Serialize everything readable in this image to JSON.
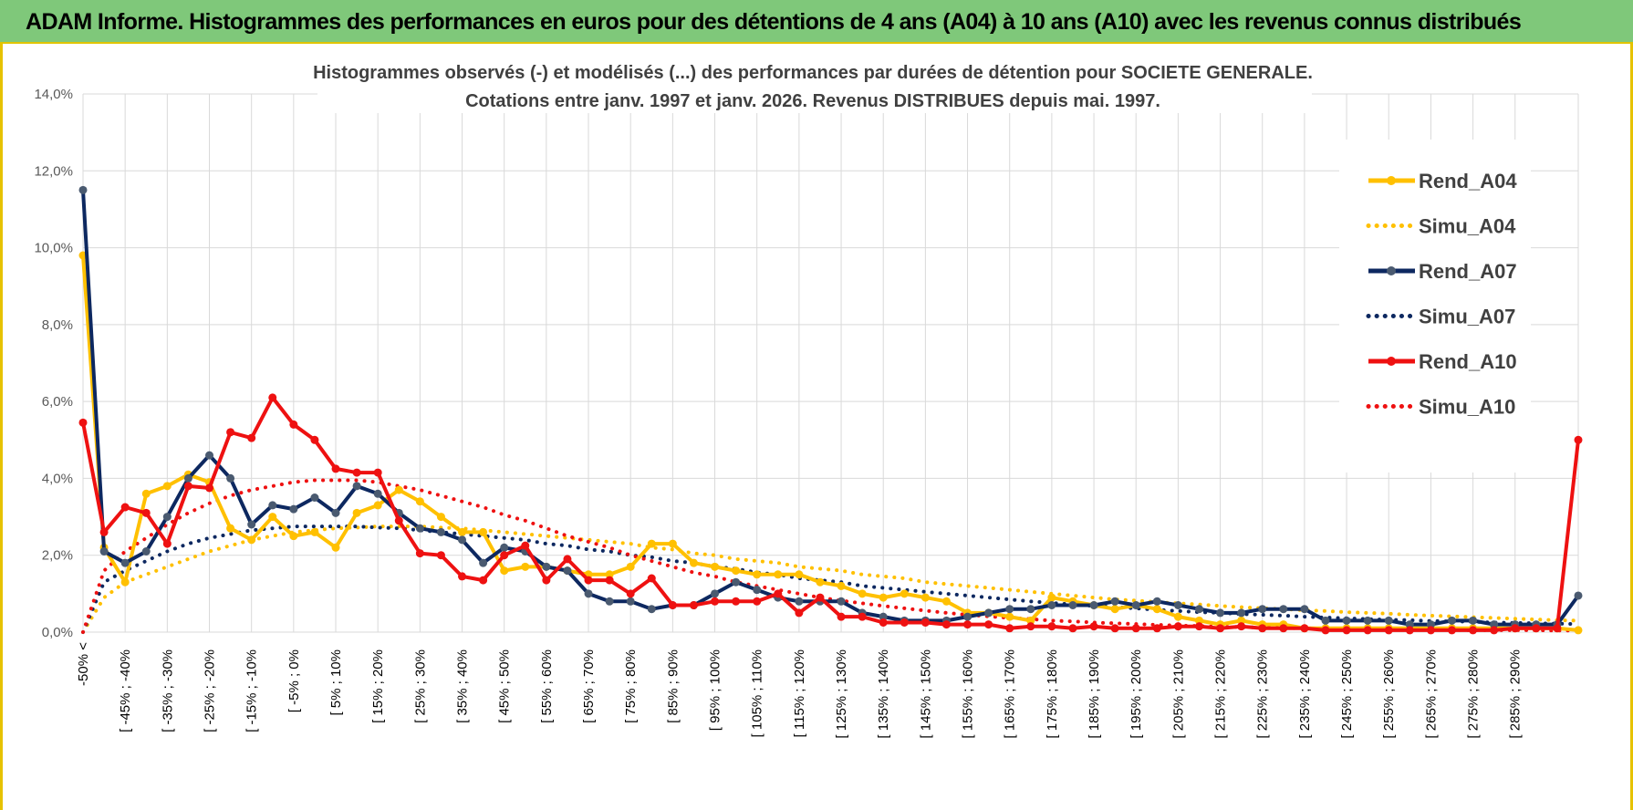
{
  "banner": {
    "title": "ADAM Informe. Histogrammes des performances en euros pour des détentions de 4 ans (A04) à 10 ans (A10) avec les revenus connus distribués"
  },
  "chart_data": {
    "type": "line",
    "title_line1": "Histogrammes observés (-) et modélisés (...) des performances par durées de détention pour SOCIETE GENERALE.",
    "title_line2": "Cotations entre janv. 1997 et janv. 2026. Revenus DISTRIBUES depuis mai. 1997.",
    "ylim": [
      0,
      14
    ],
    "yticks": [
      "0,0%",
      "2,0%",
      "4,0%",
      "6,0%",
      "8,0%",
      "10,0%",
      "12,0%",
      "14,0%"
    ],
    "x_labels": [
      "-50% <",
      "[ -45% ; -40%",
      "[ -35% ; -30%",
      "[ -25% ; -20%",
      "[ -15% ; -10%",
      "[ -5% ; 0%",
      "[ 5% ; 10%",
      "[ 15% ; 20%",
      "[ 25% ; 30%",
      "[ 35% ; 40%",
      "[ 45% ; 50%",
      "[ 55% ; 60%",
      "[ 65% ; 70%",
      "[ 75% ; 80%",
      "[ 85% ; 90%",
      "[ 95% ; 100%",
      "[ 105% ; 110%",
      "[ 115% ; 120%",
      "[ 125% ; 130%",
      "[ 135% ; 140%",
      "[ 145% ; 150%",
      "[ 155% ; 160%",
      "[ 165% ; 170%",
      "[ 175% ; 180%",
      "[ 185% ; 190%",
      "[ 195% ; 200%",
      "[ 205% ; 210%",
      "[ 215% ; 220%",
      "[ 225% ; 230%",
      "[ 235% ; 240%",
      "[ 245% ; 250%",
      "[ 255% ; 260%",
      "[ 265% ; 270%",
      "[ 275% ; 280%",
      "[ 285% ; 290%"
    ],
    "legend_position": "right",
    "grid": true,
    "series": [
      {
        "name": "Rend_A04",
        "style": "solid",
        "color": "#ffc000",
        "values": [
          9.8,
          2.2,
          1.3,
          3.6,
          3.8,
          4.1,
          3.9,
          2.7,
          2.4,
          3.0,
          2.5,
          2.6,
          2.2,
          3.1,
          3.3,
          3.7,
          3.4,
          3.0,
          2.6,
          2.6,
          1.6,
          1.7,
          1.7,
          1.6,
          1.5,
          1.5,
          1.7,
          2.3,
          2.3,
          1.8,
          1.7,
          1.6,
          1.5,
          1.5,
          1.5,
          1.3,
          1.2,
          1.0,
          0.9,
          1.0,
          0.9,
          0.8,
          0.5,
          0.5,
          0.4,
          0.3,
          0.9,
          0.8,
          0.7,
          0.6,
          0.7,
          0.6,
          0.4,
          0.3,
          0.2,
          0.3,
          0.2,
          0.2,
          0.1,
          0.1,
          0.1,
          0.1,
          0.1,
          0.1,
          0.1,
          0.1,
          0.1,
          0.1,
          0.1,
          0.1,
          0.1,
          0.05
        ]
      },
      {
        "name": "Simu_A04",
        "style": "dotted",
        "color": "#ffc000",
        "values": [
          0.0,
          0.9,
          1.3,
          1.5,
          1.7,
          1.9,
          2.1,
          2.25,
          2.4,
          2.5,
          2.6,
          2.65,
          2.7,
          2.72,
          2.75,
          2.75,
          2.75,
          2.72,
          2.7,
          2.65,
          2.6,
          2.55,
          2.5,
          2.45,
          2.4,
          2.35,
          2.3,
          2.2,
          2.15,
          2.05,
          2.0,
          1.9,
          1.85,
          1.8,
          1.7,
          1.65,
          1.6,
          1.5,
          1.45,
          1.4,
          1.3,
          1.25,
          1.2,
          1.15,
          1.1,
          1.05,
          1.0,
          0.95,
          0.9,
          0.85,
          0.82,
          0.78,
          0.75,
          0.72,
          0.68,
          0.65,
          0.62,
          0.6,
          0.57,
          0.55,
          0.52,
          0.5,
          0.48,
          0.45,
          0.43,
          0.41,
          0.39,
          0.37,
          0.35,
          0.33,
          0.31,
          0.3
        ]
      },
      {
        "name": "Rend_A07",
        "style": "solid",
        "color": "#0d2860",
        "values": [
          11.5,
          2.1,
          1.8,
          2.1,
          3.0,
          4.0,
          4.6,
          4.0,
          2.8,
          3.3,
          3.2,
          3.5,
          3.1,
          3.8,
          3.6,
          3.1,
          2.7,
          2.6,
          2.4,
          1.8,
          2.2,
          2.1,
          1.7,
          1.6,
          1.0,
          0.8,
          0.8,
          0.6,
          0.7,
          0.7,
          1.0,
          1.3,
          1.1,
          0.9,
          0.8,
          0.8,
          0.8,
          0.5,
          0.4,
          0.3,
          0.3,
          0.3,
          0.4,
          0.5,
          0.6,
          0.6,
          0.7,
          0.7,
          0.7,
          0.8,
          0.7,
          0.8,
          0.7,
          0.6,
          0.5,
          0.5,
          0.6,
          0.6,
          0.6,
          0.3,
          0.3,
          0.3,
          0.3,
          0.2,
          0.2,
          0.3,
          0.3,
          0.2,
          0.2,
          0.2,
          0.2,
          0.95
        ]
      },
      {
        "name": "Simu_A07",
        "style": "dotted",
        "color": "#0d2860",
        "values": [
          0.0,
          1.3,
          1.6,
          1.85,
          2.1,
          2.3,
          2.45,
          2.55,
          2.65,
          2.7,
          2.75,
          2.75,
          2.75,
          2.75,
          2.72,
          2.7,
          2.65,
          2.6,
          2.55,
          2.5,
          2.45,
          2.4,
          2.3,
          2.25,
          2.15,
          2.1,
          2.0,
          1.95,
          1.85,
          1.8,
          1.7,
          1.65,
          1.55,
          1.5,
          1.4,
          1.35,
          1.3,
          1.2,
          1.15,
          1.1,
          1.05,
          1.0,
          0.95,
          0.9,
          0.85,
          0.8,
          0.76,
          0.72,
          0.68,
          0.65,
          0.62,
          0.58,
          0.55,
          0.52,
          0.5,
          0.47,
          0.45,
          0.43,
          0.4,
          0.38,
          0.36,
          0.34,
          0.32,
          0.31,
          0.29,
          0.28,
          0.27,
          0.25,
          0.24,
          0.23,
          0.22,
          0.21
        ]
      },
      {
        "name": "Rend_A10",
        "style": "solid",
        "color": "#ee1111",
        "values": [
          5.45,
          2.6,
          3.25,
          3.1,
          2.3,
          3.8,
          3.75,
          5.2,
          5.05,
          6.1,
          5.4,
          5.0,
          4.25,
          4.15,
          4.15,
          2.9,
          2.05,
          2.0,
          1.45,
          1.35,
          2.0,
          2.25,
          1.35,
          1.9,
          1.35,
          1.35,
          1.0,
          1.4,
          0.7,
          0.7,
          0.8,
          0.8,
          0.8,
          1.0,
          0.5,
          0.9,
          0.4,
          0.4,
          0.25,
          0.25,
          0.25,
          0.2,
          0.2,
          0.2,
          0.1,
          0.15,
          0.15,
          0.1,
          0.15,
          0.1,
          0.1,
          0.1,
          0.15,
          0.15,
          0.1,
          0.15,
          0.1,
          0.1,
          0.1,
          0.05,
          0.05,
          0.05,
          0.05,
          0.05,
          0.05,
          0.05,
          0.05,
          0.05,
          0.1,
          0.1,
          0.1,
          5.0
        ]
      },
      {
        "name": "Simu_A10",
        "style": "dotted",
        "color": "#ee1111",
        "values": [
          0.0,
          1.6,
          2.1,
          2.45,
          2.8,
          3.1,
          3.35,
          3.55,
          3.7,
          3.8,
          3.9,
          3.95,
          3.95,
          3.95,
          3.9,
          3.8,
          3.7,
          3.55,
          3.4,
          3.25,
          3.05,
          2.9,
          2.7,
          2.5,
          2.35,
          2.2,
          2.0,
          1.85,
          1.7,
          1.55,
          1.45,
          1.3,
          1.2,
          1.1,
          1.0,
          0.9,
          0.82,
          0.75,
          0.68,
          0.62,
          0.56,
          0.5,
          0.45,
          0.41,
          0.37,
          0.34,
          0.3,
          0.28,
          0.25,
          0.23,
          0.21,
          0.19,
          0.17,
          0.16,
          0.14,
          0.13,
          0.12,
          0.11,
          0.1,
          0.09,
          0.08,
          0.08,
          0.07,
          0.07,
          0.06,
          0.06,
          0.05,
          0.05,
          0.05,
          0.05,
          0.04,
          0.04
        ]
      }
    ]
  }
}
